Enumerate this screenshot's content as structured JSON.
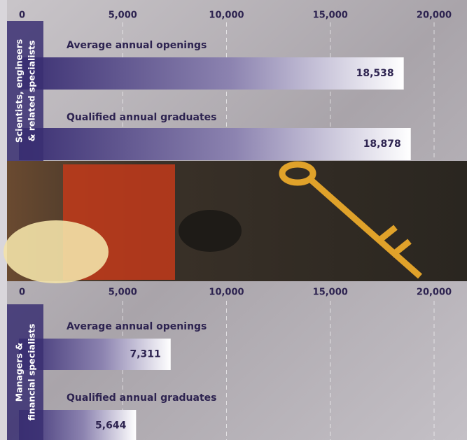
{
  "chart_data": [
    {
      "type": "bar",
      "orientation": "horizontal",
      "group_label": [
        "Scientists, engineers",
        "& related specialists"
      ],
      "categories": [
        "Average annual openings",
        "Qualified annual graduates"
      ],
      "values": [
        18538,
        18878
      ],
      "value_labels": [
        "18,538",
        "18,878"
      ],
      "xlim": [
        0,
        20000
      ],
      "xticks": [
        0,
        {
          "value": 5000,
          "label": "5,000"
        },
        {
          "value": 10000,
          "label": "10,000"
        },
        {
          "value": 15000,
          "label": "15,000"
        },
        {
          "value": 20000,
          "label": "20,000"
        }
      ],
      "grid": true,
      "color": "#3a2f72"
    },
    {
      "type": "bar",
      "orientation": "horizontal",
      "group_label": [
        "Managers &",
        "financial specialists"
      ],
      "categories": [
        "Average annual openings",
        "Qualified annual graduates"
      ],
      "values": [
        7311,
        5644
      ],
      "value_labels": [
        "7,311",
        "5,644"
      ],
      "xlim": [
        0,
        20000
      ],
      "xticks": [
        0,
        {
          "value": 5000,
          "label": "5,000"
        },
        {
          "value": 10000,
          "label": "10,000"
        },
        {
          "value": 15000,
          "label": "15,000"
        },
        {
          "value": 20000,
          "label": "20,000"
        }
      ],
      "grid": true,
      "color": "#3a2f72"
    }
  ]
}
